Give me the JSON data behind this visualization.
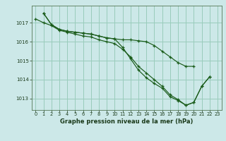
{
  "title": "Graphe pression niveau de la mer (hPa)",
  "background_color": "#cce8e8",
  "grid_color": "#99ccbb",
  "line_color": "#1a5c1a",
  "x_ticks": [
    0,
    1,
    2,
    3,
    4,
    5,
    6,
    7,
    8,
    9,
    10,
    11,
    12,
    13,
    14,
    15,
    16,
    17,
    18,
    19,
    20,
    21,
    22,
    23
  ],
  "y_ticks": [
    1013,
    1014,
    1015,
    1016,
    1017
  ],
  "ylim": [
    1012.4,
    1017.9
  ],
  "xlim": [
    -0.5,
    23.5
  ],
  "series": {
    "line1": [
      null,
      1017.5,
      1016.9,
      1016.65,
      1016.55,
      1016.5,
      1016.45,
      1016.4,
      1016.3,
      1016.2,
      1016.15,
      1016.1,
      1016.1,
      1016.05,
      1016.0,
      1015.8,
      1015.5,
      1015.2,
      1014.9,
      1014.7,
      1014.7,
      null,
      null,
      null
    ],
    "line2": [
      1017.2,
      1017.0,
      1016.85,
      1016.6,
      1016.5,
      1016.4,
      1016.3,
      1016.25,
      1016.1,
      1016.0,
      1015.9,
      1015.6,
      1015.2,
      1014.7,
      1014.35,
      1014.0,
      1013.65,
      1013.2,
      1012.95,
      1012.65,
      1012.8,
      1013.65,
      1014.15,
      null
    ],
    "line3": [
      null,
      1017.5,
      1016.9,
      1016.65,
      1016.55,
      1016.5,
      1016.45,
      1016.4,
      1016.3,
      1016.2,
      1016.15,
      1015.7,
      1015.1,
      1014.5,
      1014.1,
      1013.8,
      1013.55,
      1013.1,
      1012.9,
      1012.65,
      1012.8,
      1013.65,
      1014.15,
      null
    ]
  }
}
